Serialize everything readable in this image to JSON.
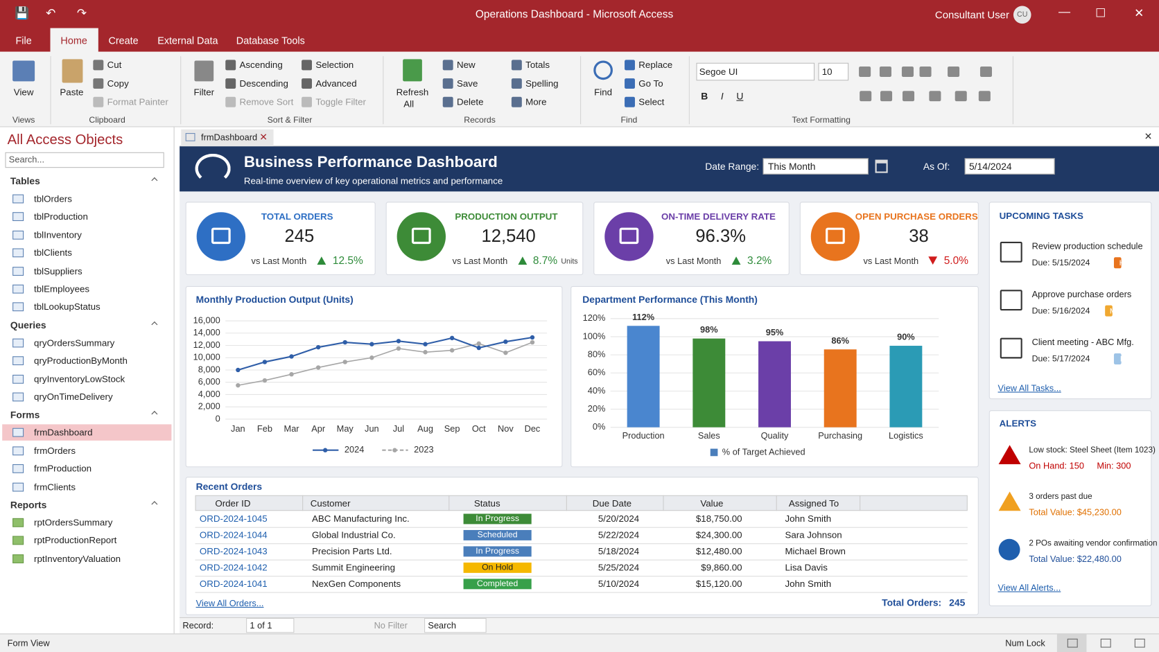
{
  "title_bar": {
    "title": "Operations Dashboard  -  Microsoft Access",
    "user": "Consultant User",
    "initials": "CU"
  },
  "tabs": [
    "File",
    "Home",
    "Create",
    "External Data",
    "Database Tools"
  ],
  "ribbon": {
    "views": {
      "label": "Views",
      "view": "View"
    },
    "clipboard": {
      "label": "Clipboard",
      "paste": "Paste",
      "items": [
        "Cut",
        "Copy",
        "Format Painter"
      ]
    },
    "sort_filter": {
      "label": "Sort & Filter",
      "filter": "Filter",
      "items": [
        "Ascending",
        "Descending",
        "Remove Sort",
        "Selection",
        "Advanced",
        "Toggle Filter"
      ]
    },
    "records": {
      "label": "Records",
      "refresh": [
        "Refresh",
        "All"
      ],
      "items": [
        "New",
        "Save",
        "Delete",
        "Totals",
        "Spelling",
        "More"
      ]
    },
    "find": {
      "label": "Find",
      "find": "Find",
      "items": [
        "Replace",
        "Go To",
        "Select"
      ]
    },
    "text_formatting": {
      "label": "Text Formatting",
      "font": "Segoe UI",
      "size": "10",
      "buttons": [
        "B",
        "I",
        "U"
      ]
    }
  },
  "nav": {
    "title": "All Access Objects",
    "search": "Search...",
    "groups": [
      {
        "name": "Tables",
        "items": [
          "tblOrders",
          "tblProduction",
          "tblInventory",
          "tblClients",
          "tblSuppliers",
          "tblEmployees",
          "tblLookupStatus"
        ]
      },
      {
        "name": "Queries",
        "items": [
          "qryOrdersSummary",
          "qryProductionByMonth",
          "qryInventoryLowStock",
          "qryOnTimeDelivery"
        ]
      },
      {
        "name": "Forms",
        "items": [
          "frmDashboard",
          "frmOrders",
          "frmProduction",
          "frmClients"
        ]
      },
      {
        "name": "Reports",
        "items": [
          "rptOrdersSummary",
          "rptProductionReport",
          "rptInventoryValuation"
        ]
      }
    ]
  },
  "doc_tab": "frmDashboard",
  "header": {
    "title": "Business Performance Dashboard",
    "subtitle": "Real-time overview of key operational metrics and performance",
    "date_range_label": "Date Range:",
    "date_range": "This Month",
    "as_of_label": "As Of:",
    "as_of": "5/14/2024"
  },
  "kpis": [
    {
      "title": "TOTAL ORDERS",
      "value": "245",
      "compare": "vs Last Month",
      "change": "12.5%",
      "trend": "up",
      "color": "#2e6fc4"
    },
    {
      "title": "PRODUCTION OUTPUT",
      "value": "12,540",
      "compare": "vs Last Month",
      "change": "8.7%",
      "unit": "Units",
      "trend": "up",
      "color": "#3d8b37"
    },
    {
      "title": "ON-TIME DELIVERY RATE",
      "value": "96.3%",
      "compare": "vs Last Month",
      "change": "3.2%",
      "trend": "up",
      "color": "#6b3fa8"
    },
    {
      "title": "OPEN PURCHASE ORDERS",
      "value": "38",
      "compare": "vs Last Month",
      "change": "5.0%",
      "trend": "down",
      "color": "#e8741e"
    }
  ],
  "chart_data": [
    {
      "type": "line",
      "title": "Monthly Production Output (Units)",
      "categories": [
        "Jan",
        "Feb",
        "Mar",
        "Apr",
        "May",
        "Jun",
        "Jul",
        "Aug",
        "Sep",
        "Oct",
        "Nov",
        "Dec"
      ],
      "series": [
        {
          "name": "2024",
          "color": "#2f5ea8",
          "values": [
            8000,
            9300,
            10200,
            11700,
            12500,
            12200,
            12700,
            12200,
            13200,
            11600,
            12600,
            13300
          ]
        },
        {
          "name": "2023",
          "color": "#a6a6a6",
          "values": [
            5500,
            6300,
            7300,
            8400,
            9300,
            10000,
            11500,
            10900,
            11200,
            12300,
            10800,
            12500
          ]
        }
      ],
      "ylim": [
        0,
        16000
      ],
      "yticks": [
        0,
        {
          "value": 2000,
          "label": "2,000"
        },
        {
          "value": 4000,
          "label": "4,000"
        },
        {
          "value": 6000,
          "label": "6,000"
        },
        {
          "value": 8000,
          "label": "8,000"
        },
        {
          "value": 10000,
          "label": "10,000"
        },
        {
          "value": 12000,
          "label": "12,000"
        },
        {
          "value": 14000,
          "label": "14,000"
        },
        {
          "value": 16000,
          "label": "16,000"
        }
      ],
      "grid": true
    },
    {
      "type": "bar",
      "title": "Department Performance (This Month)",
      "categories": [
        "Production",
        "Sales",
        "Quality",
        "Purchasing",
        "Logistics"
      ],
      "series": [
        {
          "name": "% of Target Achieved",
          "color": "#4a7ebb",
          "colors": [
            "#4a86cf",
            "#3d8b37",
            "#6b3fa8",
            "#e8741e",
            "#2b9bb5"
          ],
          "values": [
            112,
            98,
            95,
            86,
            90
          ],
          "value_labels": [
            "112%",
            "98%",
            "95%",
            "86%",
            "90%"
          ]
        }
      ],
      "ylim": [
        0,
        120
      ],
      "yticks": [
        {
          "value": 0,
          "label": "0%"
        },
        {
          "value": 20,
          "label": "20%"
        },
        {
          "value": 40,
          "label": "40%"
        },
        {
          "value": 60,
          "label": "60%"
        },
        {
          "value": 80,
          "label": "80%"
        },
        {
          "value": 100,
          "label": "100%"
        },
        {
          "value": 120,
          "label": "120%"
        }
      ],
      "grid": true
    }
  ],
  "tasks": {
    "title": "UPCOMING TASKS",
    "items": [
      {
        "title": "Review production schedule",
        "due": "Due: 5/15/2024",
        "priority": "High",
        "color": "#e8741e"
      },
      {
        "title": "Approve purchase orders",
        "due": "Due: 5/16/2024",
        "priority": "Medium",
        "color": "#f0a830"
      },
      {
        "title": "Client meeting - ABC Mfg.",
        "due": "Due: 5/17/2024",
        "priority": "Low",
        "color": "#9dc3e6"
      }
    ],
    "link": "View All Tasks..."
  },
  "alerts": {
    "title": "ALERTS",
    "items": [
      {
        "title": "Low stock: Steel Sheet (Item 1023)",
        "details": [
          "On Hand: 150",
          "Min: 300"
        ],
        "color": "#c00000"
      },
      {
        "title": "3 orders past due",
        "details": [
          "Total Value: $45,230.00"
        ],
        "color": "#e07000"
      },
      {
        "title": "2 POs awaiting vendor confirmation",
        "details": [
          "Total Value: $22,480.00"
        ],
        "color": "#1f4e99"
      }
    ],
    "link": "View All Alerts..."
  },
  "recent_orders": {
    "title": "Recent Orders",
    "columns": [
      "Order ID",
      "Customer",
      "Status",
      "Due Date",
      "Value",
      "Assigned To"
    ],
    "rows": [
      [
        "ORD-2024-1045",
        "ABC Manufacturing Inc.",
        "In Progress",
        "5/20/2024",
        "$18,750.00",
        "John Smith"
      ],
      [
        "ORD-2024-1044",
        "Global Industrial Co.",
        "Scheduled",
        "5/22/2024",
        "$24,300.00",
        "Sara Johnson"
      ],
      [
        "ORD-2024-1043",
        "Precision Parts Ltd.",
        "In Progress",
        "5/18/2024",
        "$12,480.00",
        "Michael Brown"
      ],
      [
        "ORD-2024-1042",
        "Summit Engineering",
        "On Hold",
        "5/25/2024",
        "$9,860.00",
        "Lisa Davis"
      ],
      [
        "ORD-2024-1041",
        "NexGen Components",
        "Completed",
        "5/10/2024",
        "$15,120.00",
        "John Smith"
      ]
    ],
    "status_colors": [
      "#3d8b37",
      "#4a7ebb",
      "#f5b800",
      "#37a04a"
    ],
    "link": "View All Orders...",
    "total_label": "Total Orders:",
    "total": "245"
  },
  "record_nav": {
    "label": "Record:",
    "position": "1 of 1",
    "filter": "No Filter",
    "search": "Search"
  },
  "status_bar": {
    "left": "Form View",
    "right": "Num Lock"
  }
}
